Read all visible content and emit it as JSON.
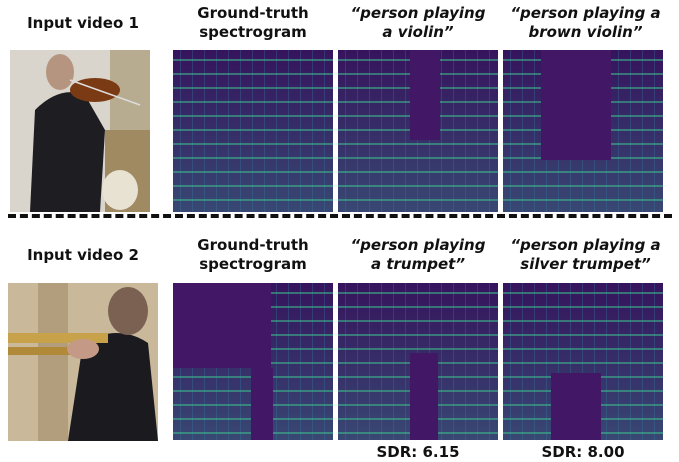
{
  "rows": [
    {
      "input_label": "Input video 1",
      "ground_truth": [
        "Ground-truth",
        "spectrogram"
      ],
      "queries": [
        {
          "lines": [
            "“person playing",
            "a violin”"
          ]
        },
        {
          "lines": [
            "“person playing a",
            "brown violin”"
          ]
        }
      ]
    },
    {
      "input_label": "Input video 2",
      "ground_truth": [
        "Ground-truth",
        "spectrogram"
      ],
      "queries": [
        {
          "lines": [
            "“person playing",
            "a trumpet”"
          ],
          "sdr": "SDR: 6.15"
        },
        {
          "lines": [
            "“person playing a",
            "silver trumpet”"
          ],
          "sdr": "SDR: 8.00"
        }
      ]
    }
  ]
}
